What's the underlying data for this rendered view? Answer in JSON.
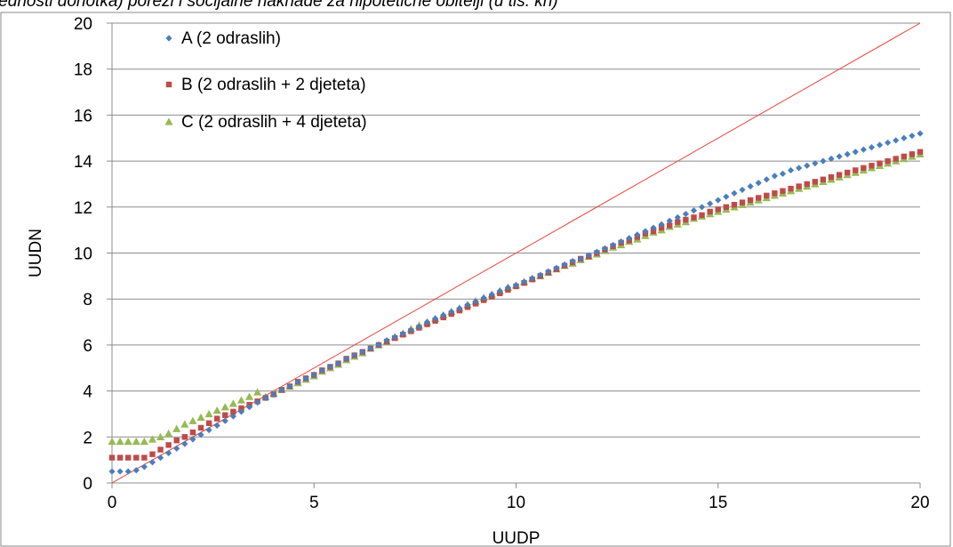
{
  "page": {
    "caption": "jednosti dohotka) porezi i socijalne naknade za hipotetične obitelji (u tis. kn)"
  },
  "chart_data": {
    "type": "scatter",
    "xlabel": "UUDP",
    "ylabel": "UUDN",
    "xlim": [
      0,
      20
    ],
    "ylim": [
      0,
      20
    ],
    "x_ticks": [
      "0",
      "5",
      "10",
      "15",
      "20"
    ],
    "y_ticks": [
      "0",
      "2",
      "4",
      "6",
      "8",
      "10",
      "12",
      "14",
      "16",
      "18",
      "20"
    ],
    "grid": "horizontal",
    "legend_position": "top-left",
    "reference_line": {
      "from": [
        0,
        0
      ],
      "to": [
        20,
        20
      ],
      "color": "#e8453c"
    },
    "series": [
      {
        "name": "A (2 odraslih)",
        "marker": "diamond",
        "color": "#4a7ebb",
        "x": [
          0.0,
          0.2,
          0.4,
          0.6,
          0.8,
          1.0,
          1.2,
          1.4,
          1.6,
          1.8,
          2.0,
          2.2,
          2.4,
          2.6,
          2.8,
          3.0,
          3.2,
          3.4,
          3.6,
          3.8,
          4.0,
          4.2,
          4.4,
          4.6,
          4.8,
          5.0,
          5.2,
          5.4,
          5.6,
          5.8,
          6.0,
          6.2,
          6.4,
          6.6,
          6.8,
          7.0,
          7.2,
          7.4,
          7.6,
          7.8,
          8.0,
          8.2,
          8.4,
          8.6,
          8.8,
          9.0,
          9.2,
          9.4,
          9.6,
          9.8,
          10.0,
          10.2,
          10.4,
          10.6,
          10.8,
          11.0,
          11.2,
          11.4,
          11.6,
          11.8,
          12.0,
          12.2,
          12.4,
          12.6,
          12.8,
          13.0,
          13.2,
          13.4,
          13.6,
          13.8,
          14.0,
          14.2,
          14.4,
          14.6,
          14.8,
          15.0,
          15.2,
          15.4,
          15.6,
          15.8,
          16.0,
          16.2,
          16.4,
          16.6,
          16.8,
          17.0,
          17.2,
          17.4,
          17.6,
          17.8,
          18.0,
          18.2,
          18.4,
          18.6,
          18.8,
          19.0,
          19.2,
          19.4,
          19.6,
          19.8,
          20.0
        ],
        "y": [
          0.5,
          0.5,
          0.5,
          0.55,
          0.7,
          0.9,
          1.1,
          1.3,
          1.5,
          1.7,
          1.9,
          2.1,
          2.3,
          2.5,
          2.7,
          2.9,
          3.1,
          3.3,
          3.5,
          3.7,
          3.85,
          4.05,
          4.2,
          4.4,
          4.55,
          4.7,
          4.9,
          5.05,
          5.2,
          5.4,
          5.55,
          5.7,
          5.85,
          6.0,
          6.2,
          6.35,
          6.5,
          6.65,
          6.8,
          7.0,
          7.15,
          7.3,
          7.45,
          7.6,
          7.75,
          7.9,
          8.05,
          8.2,
          8.35,
          8.5,
          8.6,
          8.75,
          8.9,
          9.05,
          9.2,
          9.35,
          9.5,
          9.65,
          9.75,
          9.9,
          10.05,
          10.2,
          10.35,
          10.5,
          10.65,
          10.8,
          10.95,
          11.1,
          11.25,
          11.4,
          11.55,
          11.7,
          11.85,
          12.0,
          12.15,
          12.3,
          12.45,
          12.6,
          12.75,
          12.9,
          13.05,
          13.2,
          13.35,
          13.45,
          13.6,
          13.7,
          13.8,
          13.9,
          14.0,
          14.1,
          14.2,
          14.3,
          14.4,
          14.5,
          14.6,
          14.7,
          14.8,
          14.9,
          15.0,
          15.1,
          15.2
        ]
      },
      {
        "name": "B (2 odraslih + 2 djeteta)",
        "marker": "square",
        "color": "#be4b48",
        "x": [
          0.0,
          0.2,
          0.4,
          0.6,
          0.8,
          1.0,
          1.2,
          1.4,
          1.6,
          1.8,
          2.0,
          2.2,
          2.4,
          2.6,
          2.8,
          3.0,
          3.2,
          3.4,
          3.6,
          3.8,
          4.0,
          4.2,
          4.4,
          4.6,
          4.8,
          5.0,
          5.2,
          5.4,
          5.6,
          5.8,
          6.0,
          6.2,
          6.4,
          6.6,
          6.8,
          7.0,
          7.2,
          7.4,
          7.6,
          7.8,
          8.0,
          8.2,
          8.4,
          8.6,
          8.8,
          9.0,
          9.2,
          9.4,
          9.6,
          9.8,
          10.0,
          10.2,
          10.4,
          10.6,
          10.8,
          11.0,
          11.2,
          11.4,
          11.6,
          11.8,
          12.0,
          12.2,
          12.4,
          12.6,
          12.8,
          13.0,
          13.2,
          13.4,
          13.6,
          13.8,
          14.0,
          14.2,
          14.4,
          14.6,
          14.8,
          15.0,
          15.2,
          15.4,
          15.6,
          15.8,
          16.0,
          16.2,
          16.4,
          16.6,
          16.8,
          17.0,
          17.2,
          17.4,
          17.6,
          17.8,
          18.0,
          18.2,
          18.4,
          18.6,
          18.8,
          19.0,
          19.2,
          19.4,
          19.6,
          19.8,
          20.0
        ],
        "y": [
          1.1,
          1.1,
          1.1,
          1.1,
          1.1,
          1.25,
          1.45,
          1.65,
          1.85,
          2.0,
          2.2,
          2.4,
          2.6,
          2.8,
          2.95,
          3.1,
          3.25,
          3.4,
          3.55,
          3.7,
          3.85,
          4.05,
          4.2,
          4.4,
          4.55,
          4.7,
          4.9,
          5.05,
          5.2,
          5.4,
          5.55,
          5.7,
          5.85,
          6.0,
          6.15,
          6.3,
          6.45,
          6.6,
          6.75,
          6.9,
          7.05,
          7.2,
          7.35,
          7.5,
          7.65,
          7.8,
          7.95,
          8.1,
          8.25,
          8.4,
          8.55,
          8.7,
          8.85,
          9.0,
          9.15,
          9.3,
          9.45,
          9.6,
          9.75,
          9.85,
          10.0,
          10.15,
          10.3,
          10.45,
          10.55,
          10.7,
          10.85,
          10.95,
          11.1,
          11.2,
          11.35,
          11.45,
          11.55,
          11.65,
          11.8,
          11.9,
          12.0,
          12.1,
          12.2,
          12.3,
          12.4,
          12.5,
          12.6,
          12.7,
          12.8,
          12.9,
          13.0,
          13.1,
          13.2,
          13.3,
          13.4,
          13.5,
          13.6,
          13.7,
          13.8,
          13.9,
          14.0,
          14.1,
          14.2,
          14.3,
          14.4
        ]
      },
      {
        "name": "C (2 odraslih + 4 djeteta)",
        "marker": "triangle",
        "color": "#98b954",
        "x": [
          0.0,
          0.2,
          0.4,
          0.6,
          0.8,
          1.0,
          1.2,
          1.4,
          1.6,
          1.8,
          2.0,
          2.2,
          2.4,
          2.6,
          2.8,
          3.0,
          3.2,
          3.4,
          3.6,
          3.8,
          4.0,
          4.2,
          4.4,
          4.6,
          4.8,
          5.0,
          5.2,
          5.4,
          5.6,
          5.8,
          6.0,
          6.2,
          6.4,
          6.6,
          6.8,
          7.0,
          7.2,
          7.4,
          7.6,
          7.8,
          8.0,
          8.2,
          8.4,
          8.6,
          8.8,
          9.0,
          9.2,
          9.4,
          9.6,
          9.8,
          10.0,
          10.2,
          10.4,
          10.6,
          10.8,
          11.0,
          11.2,
          11.4,
          11.6,
          11.8,
          12.0,
          12.2,
          12.4,
          12.6,
          12.8,
          13.0,
          13.2,
          13.4,
          13.6,
          13.8,
          14.0,
          14.2,
          14.4,
          14.6,
          14.8,
          15.0,
          15.2,
          15.4,
          15.6,
          15.8,
          16.0,
          16.2,
          16.4,
          16.6,
          16.8,
          17.0,
          17.2,
          17.4,
          17.6,
          17.8,
          18.0,
          18.2,
          18.4,
          18.6,
          18.8,
          19.0,
          19.2,
          19.4,
          19.6,
          19.8,
          20.0
        ],
        "y": [
          1.8,
          1.8,
          1.8,
          1.8,
          1.8,
          1.9,
          2.0,
          2.15,
          2.35,
          2.55,
          2.7,
          2.85,
          3.0,
          3.15,
          3.3,
          3.45,
          3.6,
          3.75,
          3.95,
          3.75,
          3.9,
          4.05,
          4.2,
          4.35,
          4.5,
          4.65,
          4.85,
          5.0,
          5.15,
          5.35,
          5.5,
          5.65,
          5.85,
          6.0,
          6.15,
          6.35,
          6.5,
          6.7,
          6.85,
          7.0,
          7.15,
          7.3,
          7.45,
          7.6,
          7.75,
          7.9,
          8.05,
          8.2,
          8.35,
          8.5,
          8.6,
          8.75,
          8.9,
          9.0,
          9.15,
          9.3,
          9.45,
          9.55,
          9.7,
          9.85,
          9.95,
          10.1,
          10.25,
          10.35,
          10.5,
          10.6,
          10.75,
          10.9,
          11.0,
          11.15,
          11.25,
          11.35,
          11.5,
          11.6,
          11.7,
          11.8,
          11.9,
          12.0,
          12.1,
          12.2,
          12.3,
          12.4,
          12.5,
          12.6,
          12.7,
          12.8,
          12.9,
          13.0,
          13.1,
          13.2,
          13.3,
          13.4,
          13.5,
          13.6,
          13.7,
          13.8,
          13.9,
          14.0,
          14.1,
          14.2,
          14.3
        ]
      }
    ]
  }
}
